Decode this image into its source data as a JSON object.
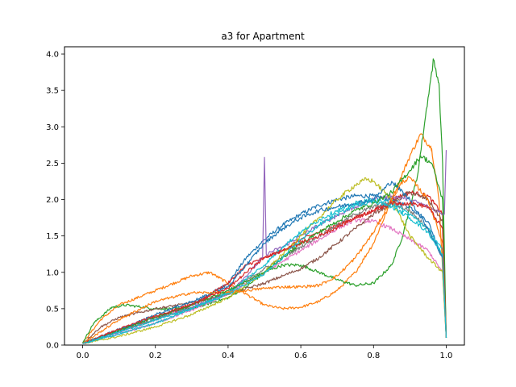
{
  "chart_data": {
    "type": "line",
    "title": "a3 for Apartment",
    "xlabel": "",
    "ylabel": "",
    "xlim": [
      -0.05,
      1.05
    ],
    "ylim": [
      0.0,
      4.1
    ],
    "xticks": [
      0.0,
      0.2,
      0.4,
      0.6,
      0.8,
      1.0
    ],
    "xtick_labels": [
      "0.0",
      "0.2",
      "0.4",
      "0.6",
      "0.8",
      "1.0"
    ],
    "yticks": [
      0.0,
      0.5,
      1.0,
      1.5,
      2.0,
      2.5,
      3.0,
      3.5,
      4.0
    ],
    "ytick_labels": [
      "0.0",
      "0.5",
      "1.0",
      "1.5",
      "2.0",
      "2.5",
      "3.0",
      "3.5",
      "4.0"
    ],
    "grid": false,
    "legend": "none",
    "series": [
      {
        "color": "#1f77b4",
        "points": [
          [
            0,
            0.02
          ],
          [
            0.05,
            0.12
          ],
          [
            0.1,
            0.22
          ],
          [
            0.2,
            0.38
          ],
          [
            0.3,
            0.55
          ],
          [
            0.4,
            0.85
          ],
          [
            0.45,
            1.2
          ],
          [
            0.5,
            1.45
          ],
          [
            0.55,
            1.65
          ],
          [
            0.6,
            1.8
          ],
          [
            0.65,
            1.92
          ],
          [
            0.7,
            2.0
          ],
          [
            0.75,
            2.05
          ],
          [
            0.8,
            2.05
          ],
          [
            0.85,
            2.0
          ],
          [
            0.9,
            1.9
          ],
          [
            0.95,
            1.7
          ],
          [
            0.99,
            1.2
          ],
          [
            1.0,
            0.1
          ]
        ]
      },
      {
        "color": "#ff7f0e",
        "points": [
          [
            0,
            0.03
          ],
          [
            0.05,
            0.35
          ],
          [
            0.1,
            0.55
          ],
          [
            0.2,
            0.75
          ],
          [
            0.3,
            0.95
          ],
          [
            0.35,
            1.0
          ],
          [
            0.4,
            0.85
          ],
          [
            0.45,
            0.7
          ],
          [
            0.5,
            0.55
          ],
          [
            0.55,
            0.5
          ],
          [
            0.6,
            0.52
          ],
          [
            0.65,
            0.6
          ],
          [
            0.7,
            0.75
          ],
          [
            0.75,
            1.0
          ],
          [
            0.8,
            1.4
          ],
          [
            0.85,
            2.0
          ],
          [
            0.9,
            2.6
          ],
          [
            0.93,
            2.9
          ],
          [
            0.96,
            2.7
          ],
          [
            0.98,
            2.0
          ],
          [
            1.0,
            0.1
          ]
        ]
      },
      {
        "color": "#2ca02c",
        "points": [
          [
            0,
            0.03
          ],
          [
            0.03,
            0.3
          ],
          [
            0.08,
            0.52
          ],
          [
            0.12,
            0.55
          ],
          [
            0.2,
            0.5
          ],
          [
            0.3,
            0.5
          ],
          [
            0.4,
            0.65
          ],
          [
            0.45,
            0.8
          ],
          [
            0.5,
            1.0
          ],
          [
            0.55,
            1.1
          ],
          [
            0.6,
            1.1
          ],
          [
            0.65,
            1.0
          ],
          [
            0.7,
            0.9
          ],
          [
            0.75,
            0.82
          ],
          [
            0.8,
            0.85
          ],
          [
            0.85,
            1.1
          ],
          [
            0.88,
            1.5
          ],
          [
            0.92,
            2.3
          ],
          [
            0.95,
            3.4
          ],
          [
            0.965,
            3.92
          ],
          [
            0.98,
            3.6
          ],
          [
            0.99,
            2.5
          ],
          [
            1.0,
            0.1
          ]
        ]
      },
      {
        "color": "#d62728",
        "points": [
          [
            0,
            0.02
          ],
          [
            0.1,
            0.2
          ],
          [
            0.2,
            0.35
          ],
          [
            0.3,
            0.55
          ],
          [
            0.4,
            0.85
          ],
          [
            0.45,
            1.1
          ],
          [
            0.5,
            1.2
          ],
          [
            0.55,
            1.3
          ],
          [
            0.6,
            1.45
          ],
          [
            0.65,
            1.55
          ],
          [
            0.7,
            1.65
          ],
          [
            0.75,
            1.75
          ],
          [
            0.8,
            1.85
          ],
          [
            0.85,
            2.0
          ],
          [
            0.9,
            2.1
          ],
          [
            0.95,
            2.05
          ],
          [
            0.99,
            1.8
          ],
          [
            1.0,
            0.1
          ]
        ]
      },
      {
        "color": "#9467bd",
        "points": [
          [
            0,
            0.02
          ],
          [
            0.1,
            0.18
          ],
          [
            0.2,
            0.35
          ],
          [
            0.3,
            0.52
          ],
          [
            0.4,
            0.72
          ],
          [
            0.45,
            0.95
          ],
          [
            0.495,
            1.2
          ],
          [
            0.5,
            2.58
          ],
          [
            0.505,
            1.25
          ],
          [
            0.55,
            1.35
          ],
          [
            0.6,
            1.5
          ],
          [
            0.65,
            1.65
          ],
          [
            0.7,
            1.78
          ],
          [
            0.75,
            1.9
          ],
          [
            0.8,
            2.0
          ],
          [
            0.85,
            2.05
          ],
          [
            0.9,
            2.0
          ],
          [
            0.95,
            1.9
          ],
          [
            0.995,
            1.8
          ],
          [
            1.0,
            2.68
          ]
        ]
      },
      {
        "color": "#8c564b",
        "points": [
          [
            0,
            0.02
          ],
          [
            0.05,
            0.25
          ],
          [
            0.1,
            0.38
          ],
          [
            0.2,
            0.5
          ],
          [
            0.3,
            0.58
          ],
          [
            0.4,
            0.7
          ],
          [
            0.5,
            0.85
          ],
          [
            0.55,
            0.95
          ],
          [
            0.6,
            1.05
          ],
          [
            0.65,
            1.2
          ],
          [
            0.7,
            1.4
          ],
          [
            0.75,
            1.6
          ],
          [
            0.8,
            1.8
          ],
          [
            0.85,
            1.95
          ],
          [
            0.9,
            2.1
          ],
          [
            0.95,
            2.0
          ],
          [
            0.99,
            1.7
          ],
          [
            1.0,
            0.1
          ]
        ]
      },
      {
        "color": "#e377c2",
        "points": [
          [
            0,
            0.02
          ],
          [
            0.1,
            0.15
          ],
          [
            0.2,
            0.3
          ],
          [
            0.3,
            0.48
          ],
          [
            0.4,
            0.7
          ],
          [
            0.5,
            1.0
          ],
          [
            0.55,
            1.15
          ],
          [
            0.6,
            1.3
          ],
          [
            0.65,
            1.45
          ],
          [
            0.7,
            1.6
          ],
          [
            0.75,
            1.72
          ],
          [
            0.8,
            1.7
          ],
          [
            0.85,
            1.6
          ],
          [
            0.9,
            1.45
          ],
          [
            0.95,
            1.3
          ],
          [
            0.99,
            1.0
          ],
          [
            1.0,
            0.1
          ]
        ]
      },
      {
        "color": "#7f7f7f",
        "points": [
          [
            0,
            0.02
          ],
          [
            0.1,
            0.2
          ],
          [
            0.2,
            0.35
          ],
          [
            0.3,
            0.5
          ],
          [
            0.4,
            0.72
          ],
          [
            0.5,
            1.05
          ],
          [
            0.55,
            1.2
          ],
          [
            0.6,
            1.35
          ],
          [
            0.65,
            1.5
          ],
          [
            0.7,
            1.65
          ],
          [
            0.75,
            1.8
          ],
          [
            0.8,
            1.9
          ],
          [
            0.85,
            1.95
          ],
          [
            0.9,
            1.85
          ],
          [
            0.95,
            1.6
          ],
          [
            0.99,
            1.2
          ],
          [
            1.0,
            0.1
          ]
        ]
      },
      {
        "color": "#bcbd22",
        "points": [
          [
            0,
            0.02
          ],
          [
            0.1,
            0.12
          ],
          [
            0.2,
            0.25
          ],
          [
            0.3,
            0.42
          ],
          [
            0.4,
            0.65
          ],
          [
            0.5,
            1.0
          ],
          [
            0.55,
            1.25
          ],
          [
            0.6,
            1.5
          ],
          [
            0.65,
            1.75
          ],
          [
            0.7,
            2.0
          ],
          [
            0.75,
            2.2
          ],
          [
            0.78,
            2.28
          ],
          [
            0.8,
            2.25
          ],
          [
            0.85,
            2.0
          ],
          [
            0.9,
            1.5
          ],
          [
            0.95,
            1.2
          ],
          [
            0.99,
            1.0
          ],
          [
            1.0,
            0.1
          ]
        ]
      },
      {
        "color": "#17becf",
        "points": [
          [
            0,
            0.02
          ],
          [
            0.1,
            0.15
          ],
          [
            0.2,
            0.3
          ],
          [
            0.3,
            0.5
          ],
          [
            0.4,
            0.72
          ],
          [
            0.5,
            1.1
          ],
          [
            0.55,
            1.35
          ],
          [
            0.6,
            1.55
          ],
          [
            0.65,
            1.72
          ],
          [
            0.7,
            1.85
          ],
          [
            0.75,
            1.95
          ],
          [
            0.8,
            2.0
          ],
          [
            0.85,
            1.95
          ],
          [
            0.9,
            1.8
          ],
          [
            0.95,
            1.6
          ],
          [
            0.99,
            1.3
          ],
          [
            1.0,
            0.1
          ]
        ]
      },
      {
        "color": "#1f77b4",
        "points": [
          [
            0,
            0.02
          ],
          [
            0.1,
            0.2
          ],
          [
            0.2,
            0.42
          ],
          [
            0.3,
            0.6
          ],
          [
            0.4,
            0.8
          ],
          [
            0.45,
            1.1
          ],
          [
            0.5,
            1.4
          ],
          [
            0.55,
            1.6
          ],
          [
            0.6,
            1.75
          ],
          [
            0.65,
            1.85
          ],
          [
            0.7,
            1.9
          ],
          [
            0.75,
            1.95
          ],
          [
            0.8,
            2.0
          ],
          [
            0.85,
            2.25
          ],
          [
            0.9,
            2.0
          ],
          [
            0.95,
            1.6
          ],
          [
            0.99,
            1.2
          ],
          [
            1.0,
            0.1
          ]
        ]
      },
      {
        "color": "#ff7f0e",
        "points": [
          [
            0,
            0.02
          ],
          [
            0.1,
            0.35
          ],
          [
            0.2,
            0.6
          ],
          [
            0.3,
            0.72
          ],
          [
            0.4,
            0.72
          ],
          [
            0.5,
            0.78
          ],
          [
            0.55,
            0.8
          ],
          [
            0.6,
            0.8
          ],
          [
            0.65,
            0.82
          ],
          [
            0.7,
            0.95
          ],
          [
            0.75,
            1.2
          ],
          [
            0.8,
            1.55
          ],
          [
            0.85,
            2.0
          ],
          [
            0.88,
            2.25
          ],
          [
            0.9,
            2.3
          ],
          [
            0.95,
            2.0
          ],
          [
            0.99,
            1.4
          ],
          [
            1.0,
            0.1
          ]
        ]
      },
      {
        "color": "#2ca02c",
        "points": [
          [
            0,
            0.02
          ],
          [
            0.1,
            0.2
          ],
          [
            0.2,
            0.38
          ],
          [
            0.3,
            0.55
          ],
          [
            0.4,
            0.75
          ],
          [
            0.5,
            1.0
          ],
          [
            0.55,
            1.2
          ],
          [
            0.6,
            1.4
          ],
          [
            0.65,
            1.55
          ],
          [
            0.7,
            1.7
          ],
          [
            0.75,
            1.85
          ],
          [
            0.8,
            1.95
          ],
          [
            0.85,
            2.1
          ],
          [
            0.9,
            2.4
          ],
          [
            0.93,
            2.6
          ],
          [
            0.96,
            2.5
          ],
          [
            0.99,
            2.0
          ],
          [
            1.0,
            0.1
          ]
        ]
      },
      {
        "color": "#d62728",
        "points": [
          [
            0,
            0.02
          ],
          [
            0.1,
            0.22
          ],
          [
            0.2,
            0.4
          ],
          [
            0.3,
            0.56
          ],
          [
            0.4,
            0.78
          ],
          [
            0.45,
            1.0
          ],
          [
            0.5,
            1.2
          ],
          [
            0.55,
            1.3
          ],
          [
            0.6,
            1.4
          ],
          [
            0.65,
            1.5
          ],
          [
            0.7,
            1.62
          ],
          [
            0.75,
            1.75
          ],
          [
            0.8,
            1.85
          ],
          [
            0.85,
            1.95
          ],
          [
            0.9,
            1.95
          ],
          [
            0.95,
            1.9
          ],
          [
            0.99,
            1.6
          ],
          [
            1.0,
            0.1
          ]
        ]
      },
      {
        "color": "#17becf",
        "points": [
          [
            0,
            0.02
          ],
          [
            0.1,
            0.18
          ],
          [
            0.2,
            0.35
          ],
          [
            0.3,
            0.5
          ],
          [
            0.4,
            0.7
          ],
          [
            0.5,
            0.98
          ],
          [
            0.55,
            1.2
          ],
          [
            0.6,
            1.45
          ],
          [
            0.65,
            1.65
          ],
          [
            0.7,
            1.8
          ],
          [
            0.75,
            1.92
          ],
          [
            0.8,
            1.98
          ],
          [
            0.85,
            1.9
          ],
          [
            0.9,
            1.75
          ],
          [
            0.95,
            1.55
          ],
          [
            0.99,
            1.25
          ],
          [
            1.0,
            0.1
          ]
        ]
      }
    ]
  }
}
